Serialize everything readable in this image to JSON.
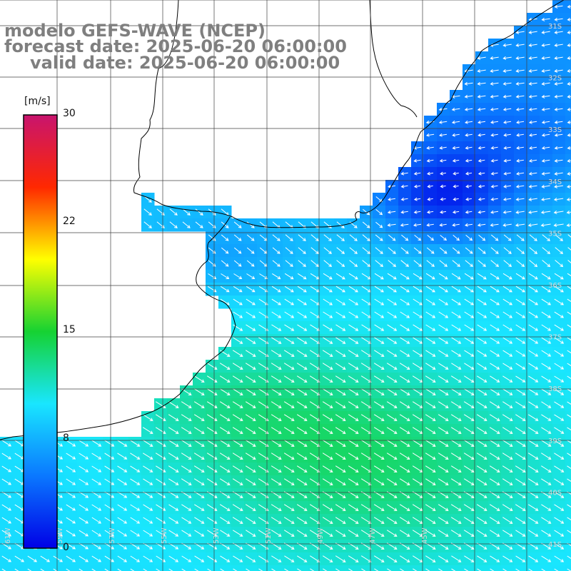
{
  "title": {
    "model": "modelo GEFS-WAVE (NCEP)",
    "forecast": "forecast date: 2025-06-20 06:00:00",
    "valid": "valid date: 2025-06-20 06:00:00"
  },
  "colorbar": {
    "unit": "[m/s]",
    "ticks": [
      "30",
      "22",
      "15",
      "8",
      "0"
    ],
    "range": [
      0,
      30
    ],
    "stops": [
      "#0000e6",
      "#0a78ff",
      "#19e6ff",
      "#16d232",
      "#ffff00",
      "#ff2800",
      "#c8146e"
    ]
  },
  "grid": {
    "lon_labels": [
      "61W",
      "59W",
      "57W",
      "55W",
      "53W",
      "51W",
      "49W",
      "47W",
      "45W"
    ],
    "lat_labels": [
      "31S",
      "32S",
      "33S",
      "34S",
      "35S",
      "36S",
      "37S",
      "38S",
      "39S",
      "40S",
      "41S"
    ]
  },
  "field": {
    "variable": "wind speed",
    "colors": {
      "land": "#ffffff",
      "coast": "#000000",
      "grid": "#404040",
      "arrows": "#ffffff"
    }
  }
}
